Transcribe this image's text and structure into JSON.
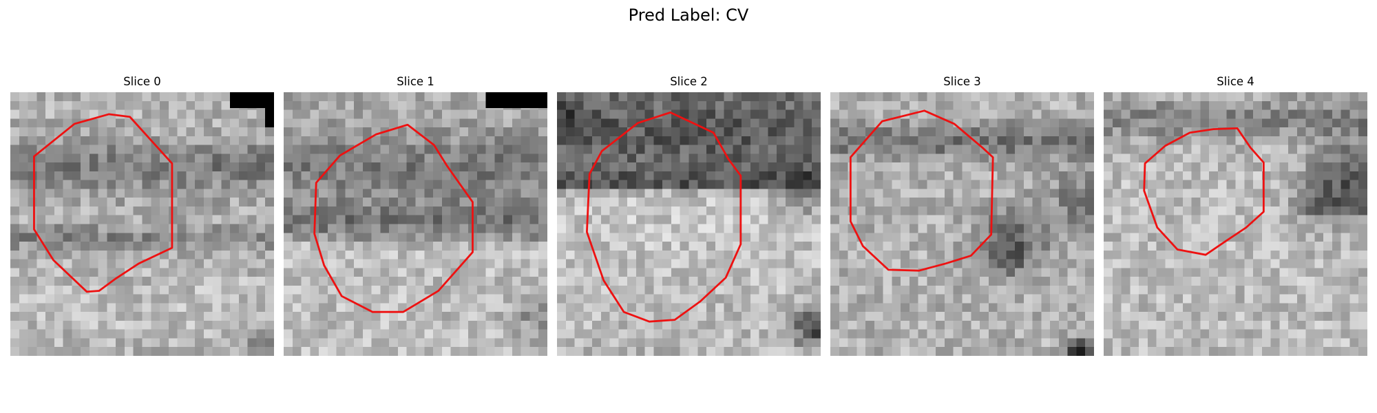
{
  "figure": {
    "title": "Pred Label: CV",
    "contour_color": "#ee1111"
  },
  "panels": [
    {
      "title": "Slice 0",
      "contour": [
        [
          13.6,
          2.8
        ],
        [
          16.4,
          5.9
        ],
        [
          18.4,
          8.1
        ],
        [
          18.4,
          17.7
        ],
        [
          14.6,
          19.5
        ],
        [
          12.0,
          21.2
        ],
        [
          10.1,
          22.6
        ],
        [
          8.7,
          22.7
        ],
        [
          4.9,
          19.1
        ],
        [
          2.7,
          15.6
        ],
        [
          2.7,
          7.3
        ],
        [
          7.3,
          3.6
        ],
        [
          11.2,
          2.5
        ]
      ]
    },
    {
      "title": "Slice 1",
      "contour": [
        [
          14.1,
          3.7
        ],
        [
          17.1,
          6.0
        ],
        [
          18.6,
          8.4
        ],
        [
          21.5,
          12.5
        ],
        [
          21.5,
          18.2
        ],
        [
          17.6,
          22.6
        ],
        [
          13.6,
          25.0
        ],
        [
          10.1,
          25.0
        ],
        [
          6.6,
          23.2
        ],
        [
          4.6,
          19.7
        ],
        [
          3.5,
          16.1
        ],
        [
          3.7,
          10.3
        ],
        [
          6.4,
          7.2
        ],
        [
          10.5,
          4.8
        ]
      ]
    },
    {
      "title": "Slice 2",
      "contour": [
        [
          12.9,
          2.3
        ],
        [
          17.8,
          4.6
        ],
        [
          19.5,
          7.6
        ],
        [
          20.9,
          9.5
        ],
        [
          20.9,
          17.3
        ],
        [
          19.2,
          21.1
        ],
        [
          16.3,
          23.8
        ],
        [
          13.4,
          25.9
        ],
        [
          10.5,
          26.1
        ],
        [
          7.6,
          25.0
        ],
        [
          5.3,
          21.4
        ],
        [
          3.4,
          15.9
        ],
        [
          3.7,
          9.3
        ],
        [
          5.1,
          6.7
        ],
        [
          9.2,
          3.5
        ]
      ]
    },
    {
      "title": "Slice 3",
      "contour": [
        [
          14.1,
          3.6
        ],
        [
          17.3,
          6.3
        ],
        [
          18.5,
          7.4
        ],
        [
          18.3,
          16.2
        ],
        [
          16.0,
          18.6
        ],
        [
          13.1,
          19.5
        ],
        [
          10.1,
          20.3
        ],
        [
          6.6,
          20.2
        ],
        [
          3.7,
          17.5
        ],
        [
          2.3,
          14.7
        ],
        [
          2.3,
          7.4
        ],
        [
          5.9,
          3.3
        ],
        [
          10.7,
          2.1
        ]
      ]
    },
    {
      "title": "Slice 4",
      "contour": [
        [
          15.2,
          4.1
        ],
        [
          16.7,
          6.3
        ],
        [
          18.2,
          8.0
        ],
        [
          18.2,
          13.6
        ],
        [
          16.2,
          15.4
        ],
        [
          13.8,
          17.0
        ],
        [
          11.6,
          18.5
        ],
        [
          8.4,
          17.9
        ],
        [
          6.1,
          15.4
        ],
        [
          4.6,
          11.2
        ],
        [
          4.7,
          8.1
        ],
        [
          7.0,
          6.1
        ],
        [
          9.8,
          4.6
        ],
        [
          12.5,
          4.2
        ]
      ]
    }
  ]
}
